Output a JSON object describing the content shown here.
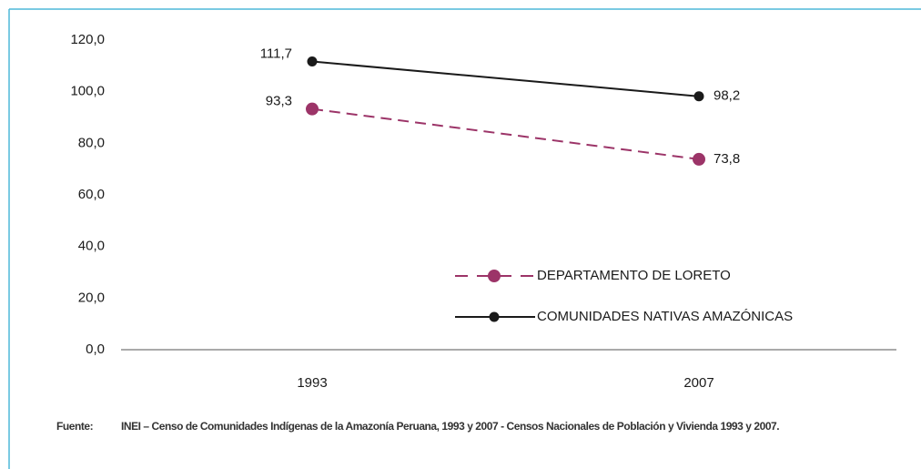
{
  "chart_data": {
    "type": "line",
    "categories": [
      "1993",
      "2007"
    ],
    "series": [
      {
        "name": "DEPARTAMENTO DE LORETO",
        "color": "#9c3468",
        "dashed": true,
        "values": [
          93.3,
          73.8
        ],
        "value_labels": [
          "93,3",
          "73,8"
        ]
      },
      {
        "name": "COMUNIDADES NATIVAS AMAZÓNICAS",
        "color": "#1a1a1a",
        "dashed": false,
        "values": [
          111.7,
          98.2
        ],
        "value_labels": [
          "111,7",
          "98,2"
        ]
      }
    ],
    "ylim": [
      0,
      120
    ],
    "yticks": [
      {
        "value": 0,
        "label": "0,0"
      },
      {
        "value": 20,
        "label": "20,0"
      },
      {
        "value": 40,
        "label": "40,0"
      },
      {
        "value": 60,
        "label": "60,0"
      },
      {
        "value": 80,
        "label": "80,0"
      },
      {
        "value": 100,
        "label": "100,0"
      },
      {
        "value": 120,
        "label": "120,0"
      }
    ],
    "grid": false,
    "legend": "lower right",
    "source_label": "Fuente:",
    "source": "INEI – Censo de Comunidades Indígenas de la Amazonía Peruana, 1993 y 2007 - Censos Nacionales de Población y Vivienda 1993 y 2007."
  }
}
